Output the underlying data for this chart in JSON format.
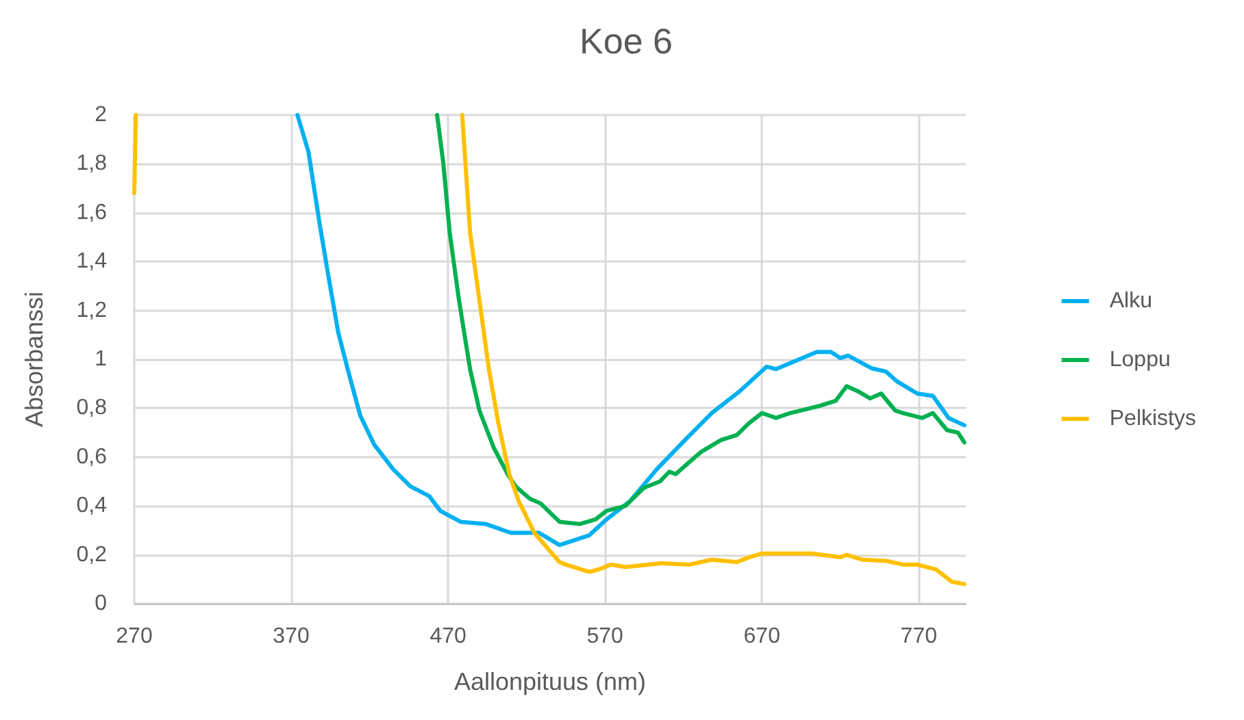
{
  "chart_data": {
    "type": "line",
    "title": "Koe 6",
    "xlabel": "Aallonpituus (nm)",
    "ylabel": "Absorbanssi",
    "xlim": [
      270,
      800
    ],
    "xticks": [
      270,
      370,
      470,
      570,
      670,
      770
    ],
    "ylim": [
      0,
      2
    ],
    "yticks": [
      0,
      {
        "value": 0.2,
        "label": "0,2"
      },
      {
        "value": 0.4,
        "label": "0,4"
      },
      {
        "value": 0.6,
        "label": "0,6"
      },
      {
        "value": 0.8,
        "label": "0,8"
      },
      1,
      {
        "value": 1.2,
        "label": "1,2"
      },
      {
        "value": 1.4,
        "label": "1,4"
      },
      {
        "value": 1.6,
        "label": "1,6"
      },
      {
        "value": 1.8,
        "label": "1,8"
      },
      2
    ],
    "grid": true,
    "legend": "right",
    "marker": "none",
    "line_style": "solid",
    "series": [
      {
        "name": "Alku",
        "color": "#00b0f0",
        "x": [
          374,
          381,
          388,
          394,
          400,
          406,
          414,
          423,
          435,
          446,
          458,
          465,
          478,
          494,
          510,
          528,
          541,
          560,
          571,
          586,
          603,
          621,
          638,
          656,
          673,
          679,
          705,
          714,
          720,
          725,
          740,
          749,
          756,
          769,
          779,
          789,
          799
        ],
        "values": [
          2,
          1.85,
          1.56,
          1.33,
          1.11,
          0.96,
          0.77,
          0.65,
          0.55,
          0.48,
          0.44,
          0.38,
          0.335,
          0.326,
          0.29,
          0.29,
          0.24,
          0.28,
          0.345,
          0.42,
          0.55,
          0.67,
          0.78,
          0.87,
          0.97,
          0.96,
          1.03,
          1.03,
          1.005,
          1.015,
          0.963,
          0.95,
          0.91,
          0.86,
          0.85,
          0.76,
          0.73
        ]
      },
      {
        "name": "Loppu",
        "color": "#00b050",
        "x": [
          463,
          467,
          471,
          477,
          484,
          490,
          499,
          508,
          513,
          522,
          529,
          541,
          554,
          564,
          571,
          583,
          595,
          605,
          611,
          615,
          631,
          644,
          654,
          662,
          670,
          679,
          688,
          707,
          717,
          724,
          731,
          739,
          746,
          755,
          760,
          772,
          779,
          788,
          795,
          799
        ],
        "values": [
          2,
          1.8,
          1.52,
          1.24,
          0.96,
          0.79,
          0.64,
          0.53,
          0.48,
          0.43,
          0.41,
          0.335,
          0.326,
          0.345,
          0.38,
          0.4,
          0.475,
          0.5,
          0.54,
          0.53,
          0.62,
          0.67,
          0.69,
          0.74,
          0.78,
          0.76,
          0.78,
          0.81,
          0.83,
          0.89,
          0.87,
          0.84,
          0.86,
          0.79,
          0.78,
          0.76,
          0.78,
          0.71,
          0.7,
          0.66
        ]
      },
      {
        "name": "Pelkistys",
        "color": "#ffc000",
        "x": [
          270,
          271,
          272,
          479,
          484,
          490,
          496,
          502,
          509,
          515,
          525,
          541,
          545,
          560,
          566,
          574,
          583,
          606,
          624,
          638,
          654,
          662,
          670,
          685,
          702,
          720,
          724,
          734,
          749,
          760,
          769,
          781,
          791,
          799
        ],
        "values": [
          1.68,
          2,
          null,
          2,
          1.52,
          1.24,
          0.96,
          0.74,
          0.53,
          0.42,
          0.29,
          0.17,
          0.16,
          0.13,
          0.14,
          0.16,
          0.15,
          0.165,
          0.16,
          0.18,
          0.17,
          0.19,
          0.205,
          0.205,
          0.205,
          0.19,
          0.2,
          0.18,
          0.175,
          0.16,
          0.16,
          0.14,
          0.09,
          0.08
        ]
      }
    ]
  }
}
